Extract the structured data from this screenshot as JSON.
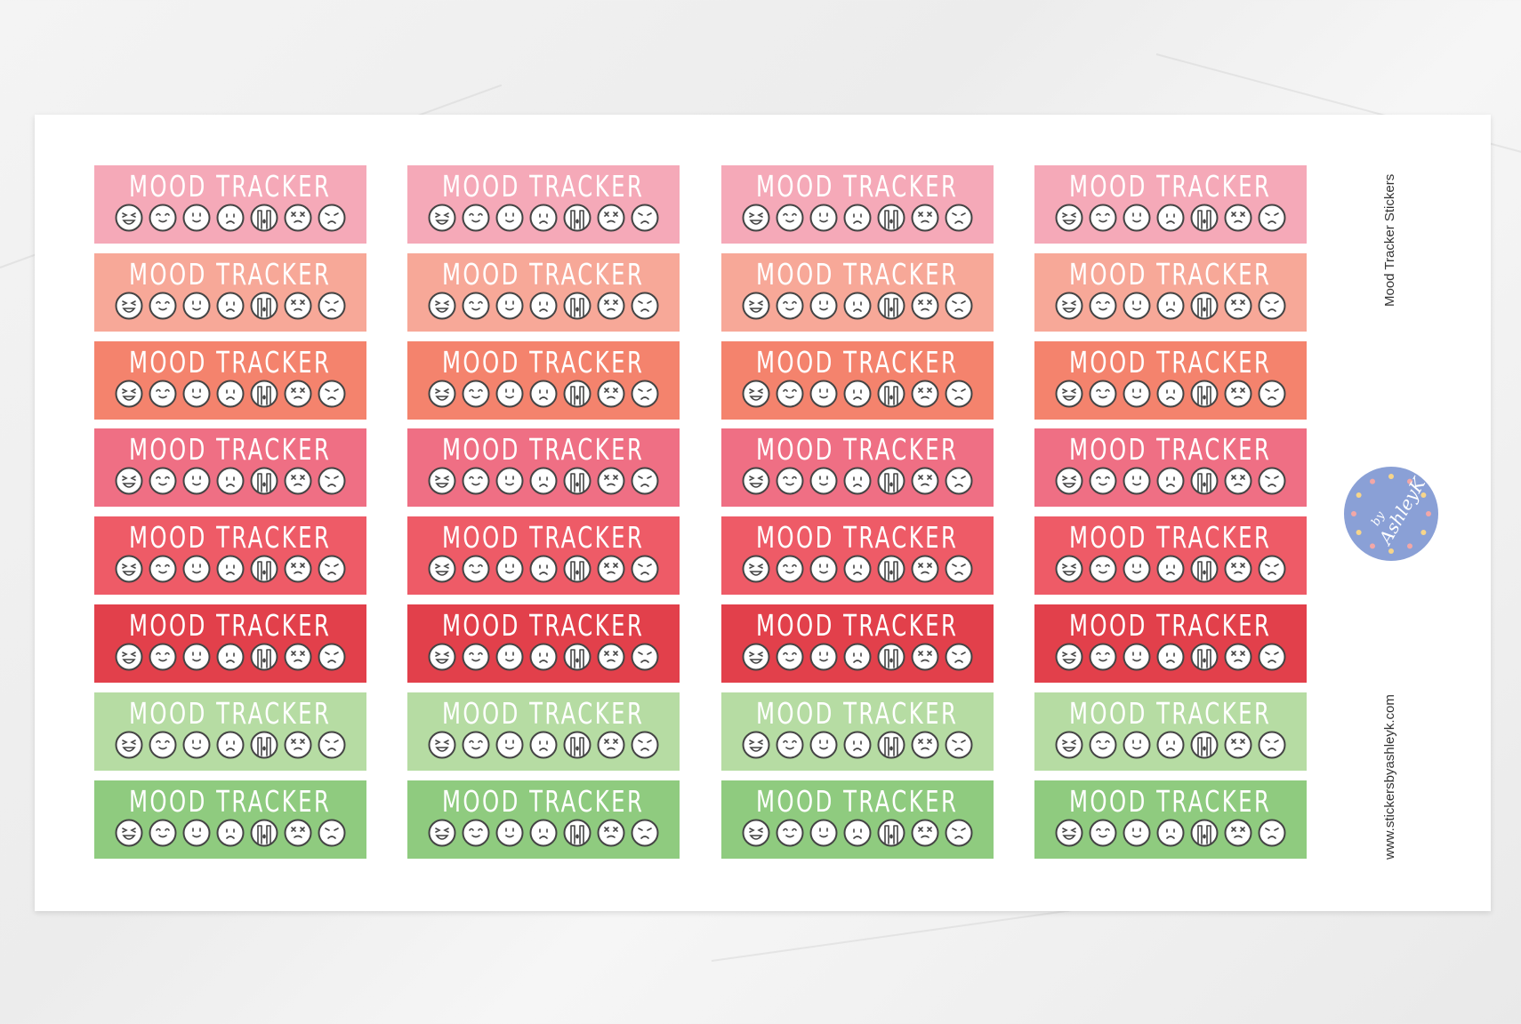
{
  "sticker_title": "MOOD TRACKER",
  "faces": [
    "laughing",
    "content",
    "happy",
    "sad",
    "crying",
    "dizzy",
    "angry"
  ],
  "rows": [
    {
      "color": "#f5a9b8"
    },
    {
      "color": "#f7a898"
    },
    {
      "color": "#f4836d"
    },
    {
      "color": "#ef6f84"
    },
    {
      "color": "#ee5b67"
    },
    {
      "color": "#e2404b"
    },
    {
      "color": "#b6dca3"
    },
    {
      "color": "#8fcb7f"
    }
  ],
  "columns": 4,
  "side_title": "Mood Tracker Stickers",
  "side_url": "www.stickersbyashleyk.com",
  "logo": {
    "text_by": "by",
    "text_name": "AshleyK",
    "color": "#8aa0d6"
  }
}
